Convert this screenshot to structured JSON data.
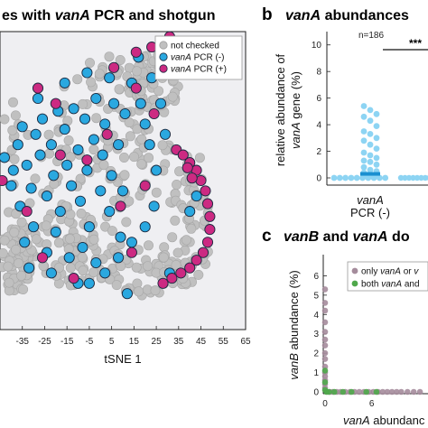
{
  "chart_data": [
    {
      "panel": "a",
      "type": "scatter",
      "title": {
        "pre": "es with ",
        "italic": "vanA",
        "post": " PCR and shotgun"
      },
      "xlabel": "tSNE 1",
      "xticks": [
        "-35",
        "-25",
        "-15",
        "-5",
        "5",
        "15",
        "25",
        "35",
        "45",
        "55",
        "65"
      ],
      "xlim": [
        -45,
        65
      ],
      "ylim": [
        -58,
        58
      ],
      "legend": {
        "position": "top-right",
        "entries": [
          {
            "italic": "",
            "text": "not checked",
            "color": "#c0c0c0"
          },
          {
            "italic": "vanA",
            "text": " PCR (-)",
            "color": "#2aa8e0"
          },
          {
            "italic": "vanA",
            "text": " PCR (+)",
            "color": "#cc2a82"
          }
        ]
      },
      "series": [
        {
          "name": "vanA PCR (-)",
          "color": "#2aa8e0",
          "points": [
            [
              -43,
              9
            ],
            [
              -39,
              4
            ],
            [
              -37,
              14
            ],
            [
              -35,
              21
            ],
            [
              -33,
              6
            ],
            [
              -31,
              -3
            ],
            [
              -29,
              18
            ],
            [
              -27,
              10
            ],
            [
              -26,
              24
            ],
            [
              -24,
              -6
            ],
            [
              -22,
              14
            ],
            [
              -21,
              2
            ],
            [
              -19,
              27
            ],
            [
              -18,
              -12
            ],
            [
              -16,
              20
            ],
            [
              -15,
              6
            ],
            [
              -13,
              -2
            ],
            [
              -12,
              28
            ],
            [
              -10,
              12
            ],
            [
              -9,
              -8
            ],
            [
              -7,
              24
            ],
            [
              -6,
              4
            ],
            [
              -5,
              -18
            ],
            [
              -3,
              16
            ],
            [
              -2,
              32
            ],
            [
              0,
              -4
            ],
            [
              1,
              10
            ],
            [
              2,
              22
            ],
            [
              4,
              -12
            ],
            [
              5,
              2
            ],
            [
              6,
              30
            ],
            [
              8,
              14
            ],
            [
              9,
              -22
            ],
            [
              10,
              -4
            ],
            [
              11,
              26
            ],
            [
              -30,
              -18
            ],
            [
              -34,
              -24
            ],
            [
              -24,
              -28
            ],
            [
              -20,
              -20
            ],
            [
              -14,
              -30
            ],
            [
              -8,
              -26
            ],
            [
              -2,
              -32
            ],
            [
              -22,
              -36
            ],
            [
              -10,
              -40
            ],
            [
              14,
              38
            ],
            [
              18,
              30
            ],
            [
              20,
              22
            ],
            [
              22,
              14
            ],
            [
              23,
              40
            ],
            [
              25,
              4
            ],
            [
              27,
              30
            ],
            [
              29,
              18
            ],
            [
              17,
              48
            ],
            [
              27,
              46
            ],
            [
              33,
              50
            ],
            [
              36,
              52
            ],
            [
              -5,
              -40
            ],
            [
              2,
              -36
            ],
            [
              8,
              -30
            ],
            [
              14,
              -24
            ],
            [
              20,
              -18
            ],
            [
              12,
              -44
            ],
            [
              24,
              -10
            ],
            [
              -32,
              -34
            ],
            [
              -36,
              -10
            ],
            [
              -40,
              -2
            ],
            [
              -28,
              32
            ],
            [
              -16,
              38
            ],
            [
              -6,
              42
            ],
            [
              4,
              40
            ],
            [
              40,
              -12
            ],
            [
              43,
              -6
            ],
            [
              31,
              -36
            ]
          ]
        },
        {
          "name": "vanA PCR (+)",
          "color": "#cc2a82",
          "points": [
            [
              -44,
              0
            ],
            [
              -28,
              36
            ],
            [
              -20,
              30
            ],
            [
              -33,
              -12
            ],
            [
              -26,
              -30
            ],
            [
              -12,
              -38
            ],
            [
              -6,
              8
            ],
            [
              3,
              18
            ],
            [
              9,
              -10
            ],
            [
              16,
              36
            ],
            [
              24,
              26
            ],
            [
              20,
              -2
            ],
            [
              14,
              -28
            ],
            [
              -18,
              10
            ],
            [
              6,
              44
            ],
            [
              16,
              50
            ],
            [
              23,
              52
            ],
            [
              31,
              56
            ],
            [
              38,
              54
            ],
            [
              34,
              12
            ],
            [
              37,
              10
            ],
            [
              40,
              7
            ],
            [
              43,
              4
            ],
            [
              45,
              0
            ],
            [
              47,
              -4
            ],
            [
              48,
              -9
            ],
            [
              49,
              -14
            ],
            [
              49,
              -19
            ],
            [
              48,
              -24
            ],
            [
              46,
              -28
            ],
            [
              43,
              -31
            ],
            [
              40,
              -34
            ],
            [
              36,
              -36
            ],
            [
              32,
              -38
            ],
            [
              28,
              -40
            ],
            [
              39,
              5
            ],
            [
              41,
              1
            ]
          ]
        }
      ]
    },
    {
      "panel": "b",
      "type": "scatter",
      "title": {
        "italic": "vanA",
        "post": " abundances"
      },
      "ylabel_lines": [
        "relative abundance of",
        "vanA gene (%)"
      ],
      "yticks": [
        "0",
        "2",
        "4",
        "6",
        "8",
        "10"
      ],
      "ylim": [
        -0.8,
        11
      ],
      "category_label": {
        "italic": "vanA",
        "sub": "PCR (-)"
      },
      "annotation_n": "n=186",
      "significance": "***",
      "color": "#8dd4f3",
      "median_color": "#1a8fd0",
      "median": 0.3,
      "values": [
        5.4,
        5.1,
        4.8,
        4.6,
        4.3,
        3.9,
        3.5,
        3.3,
        3.0,
        2.8,
        2.5,
        2.2,
        1.9,
        1.7,
        1.5,
        1.3,
        1.2,
        1.0,
        0.8,
        0.6,
        0.5,
        0.4,
        0.3,
        0.2,
        0.1,
        0,
        0,
        0,
        0,
        0,
        0,
        0,
        0,
        0,
        0
      ],
      "second_group_values": [
        0,
        0,
        0,
        0,
        0,
        0,
        0,
        0,
        0,
        0
      ]
    },
    {
      "panel": "c",
      "type": "scatter",
      "title": {
        "pre": "",
        "italic1": "vanB",
        "mid": " and ",
        "italic2": "vanA",
        "post": " do"
      },
      "xlabel": {
        "italic": "vanA",
        "post": " abundanc"
      },
      "ylabel": {
        "italic": "vanB",
        "post": " abundance (%)"
      },
      "xticks": [
        "0",
        "6"
      ],
      "yticks": [
        "0",
        "1",
        "2",
        "3",
        "4",
        "5",
        "6"
      ],
      "xlim": [
        0,
        13
      ],
      "ylim": [
        0,
        7
      ],
      "legend": {
        "position": "top-right",
        "entries": [
          {
            "text": "only ",
            "italic": "vanA",
            "post": " or ",
            "italic2": "v",
            "color": "#a58c9c"
          },
          {
            "text": "both ",
            "italic": "vanA",
            "post": " and",
            "italic2": "",
            "color": "#4fa84b"
          }
        ]
      },
      "series": [
        {
          "name": "only vanA or vanB",
          "color": "#a58c9c",
          "points": [
            [
              0,
              5.3
            ],
            [
              0,
              4.6
            ],
            [
              0,
              4.2
            ],
            [
              0,
              3.6
            ],
            [
              0,
              3.1
            ],
            [
              0,
              2.7
            ],
            [
              0,
              2.4
            ],
            [
              0,
              2.0
            ],
            [
              0,
              1.7
            ],
            [
              0,
              1.3
            ],
            [
              0,
              1.0
            ],
            [
              0,
              0.8
            ],
            [
              0,
              0.6
            ],
            [
              0,
              0.4
            ],
            [
              0,
              0.2
            ],
            [
              0.6,
              0
            ],
            [
              1.0,
              0
            ],
            [
              1.5,
              0
            ],
            [
              2.0,
              0
            ],
            [
              2.6,
              0
            ],
            [
              3.2,
              0
            ],
            [
              3.8,
              0
            ],
            [
              4.4,
              0
            ],
            [
              5.0,
              0
            ],
            [
              5.6,
              0
            ],
            [
              6.2,
              0
            ],
            [
              6.8,
              0
            ],
            [
              7.4,
              0
            ],
            [
              8.0,
              0
            ],
            [
              8.6,
              0
            ],
            [
              9.2,
              0
            ],
            [
              9.8,
              0
            ],
            [
              10.6,
              0
            ],
            [
              11.4,
              0
            ],
            [
              12.2,
              0
            ]
          ]
        },
        {
          "name": "both vanA and vanB",
          "color": "#4fa84b",
          "points": [
            [
              0,
              0.1
            ],
            [
              0.2,
              0
            ],
            [
              0.5,
              0
            ],
            [
              1.2,
              0
            ],
            [
              2.3,
              0
            ],
            [
              3.4,
              0
            ],
            [
              5.3,
              0
            ],
            [
              6.6,
              0
            ],
            [
              0,
              0.5
            ],
            [
              0,
              1.1
            ]
          ]
        }
      ]
    }
  ]
}
